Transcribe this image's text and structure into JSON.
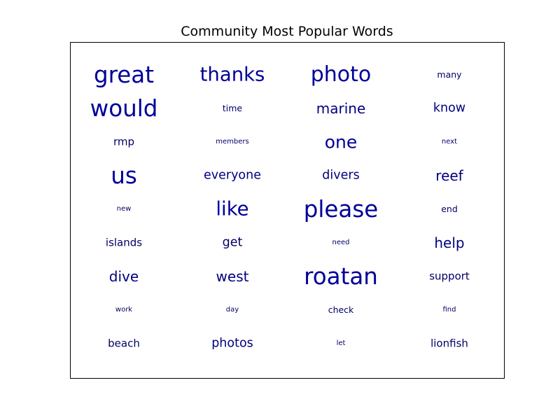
{
  "chart_data": {
    "type": "word-cloud",
    "title": "Community Most Popular Words",
    "grid_columns": 4,
    "grid_rows": 9,
    "words": [
      {
        "text": "great",
        "weight": 10,
        "color": "#000099"
      },
      {
        "text": "thanks",
        "weight": 8,
        "color": "#000099"
      },
      {
        "text": "photo",
        "weight": 9,
        "color": "#000099"
      },
      {
        "text": "many",
        "weight": 2,
        "color": "#000066"
      },
      {
        "text": "would",
        "weight": 10,
        "color": "#000099"
      },
      {
        "text": "time",
        "weight": 2,
        "color": "#000066"
      },
      {
        "text": "marine",
        "weight": 5,
        "color": "#000080"
      },
      {
        "text": "know",
        "weight": 4,
        "color": "#000080"
      },
      {
        "text": "rmp",
        "weight": 3,
        "color": "#000066"
      },
      {
        "text": "members",
        "weight": 1,
        "color": "#000066"
      },
      {
        "text": "one",
        "weight": 7,
        "color": "#000099"
      },
      {
        "text": "next",
        "weight": 1,
        "color": "#000066"
      },
      {
        "text": "us",
        "weight": 10,
        "color": "#000099"
      },
      {
        "text": "everyone",
        "weight": 4,
        "color": "#000080"
      },
      {
        "text": "divers",
        "weight": 4,
        "color": "#000080"
      },
      {
        "text": "reef",
        "weight": 5,
        "color": "#000080"
      },
      {
        "text": "new",
        "weight": 1,
        "color": "#000066"
      },
      {
        "text": "like",
        "weight": 8,
        "color": "#000099"
      },
      {
        "text": "please",
        "weight": 10,
        "color": "#000099"
      },
      {
        "text": "end",
        "weight": 2,
        "color": "#000066"
      },
      {
        "text": "islands",
        "weight": 3,
        "color": "#000066"
      },
      {
        "text": "get",
        "weight": 4,
        "color": "#000066"
      },
      {
        "text": "need",
        "weight": 1,
        "color": "#000066"
      },
      {
        "text": "help",
        "weight": 5,
        "color": "#000080"
      },
      {
        "text": "dive",
        "weight": 5,
        "color": "#000080"
      },
      {
        "text": "west",
        "weight": 5,
        "color": "#000080"
      },
      {
        "text": "roatan",
        "weight": 10,
        "color": "#000099"
      },
      {
        "text": "support",
        "weight": 3,
        "color": "#000066"
      },
      {
        "text": "work",
        "weight": 1,
        "color": "#000066"
      },
      {
        "text": "day",
        "weight": 1,
        "color": "#000066"
      },
      {
        "text": "check",
        "weight": 2,
        "color": "#000066"
      },
      {
        "text": "find",
        "weight": 1,
        "color": "#000066"
      },
      {
        "text": "beach",
        "weight": 3,
        "color": "#000066"
      },
      {
        "text": "photos",
        "weight": 4,
        "color": "#000080"
      },
      {
        "text": "let",
        "weight": 1,
        "color": "#000066"
      },
      {
        "text": "lionfish",
        "weight": 3,
        "color": "#000066"
      }
    ]
  }
}
